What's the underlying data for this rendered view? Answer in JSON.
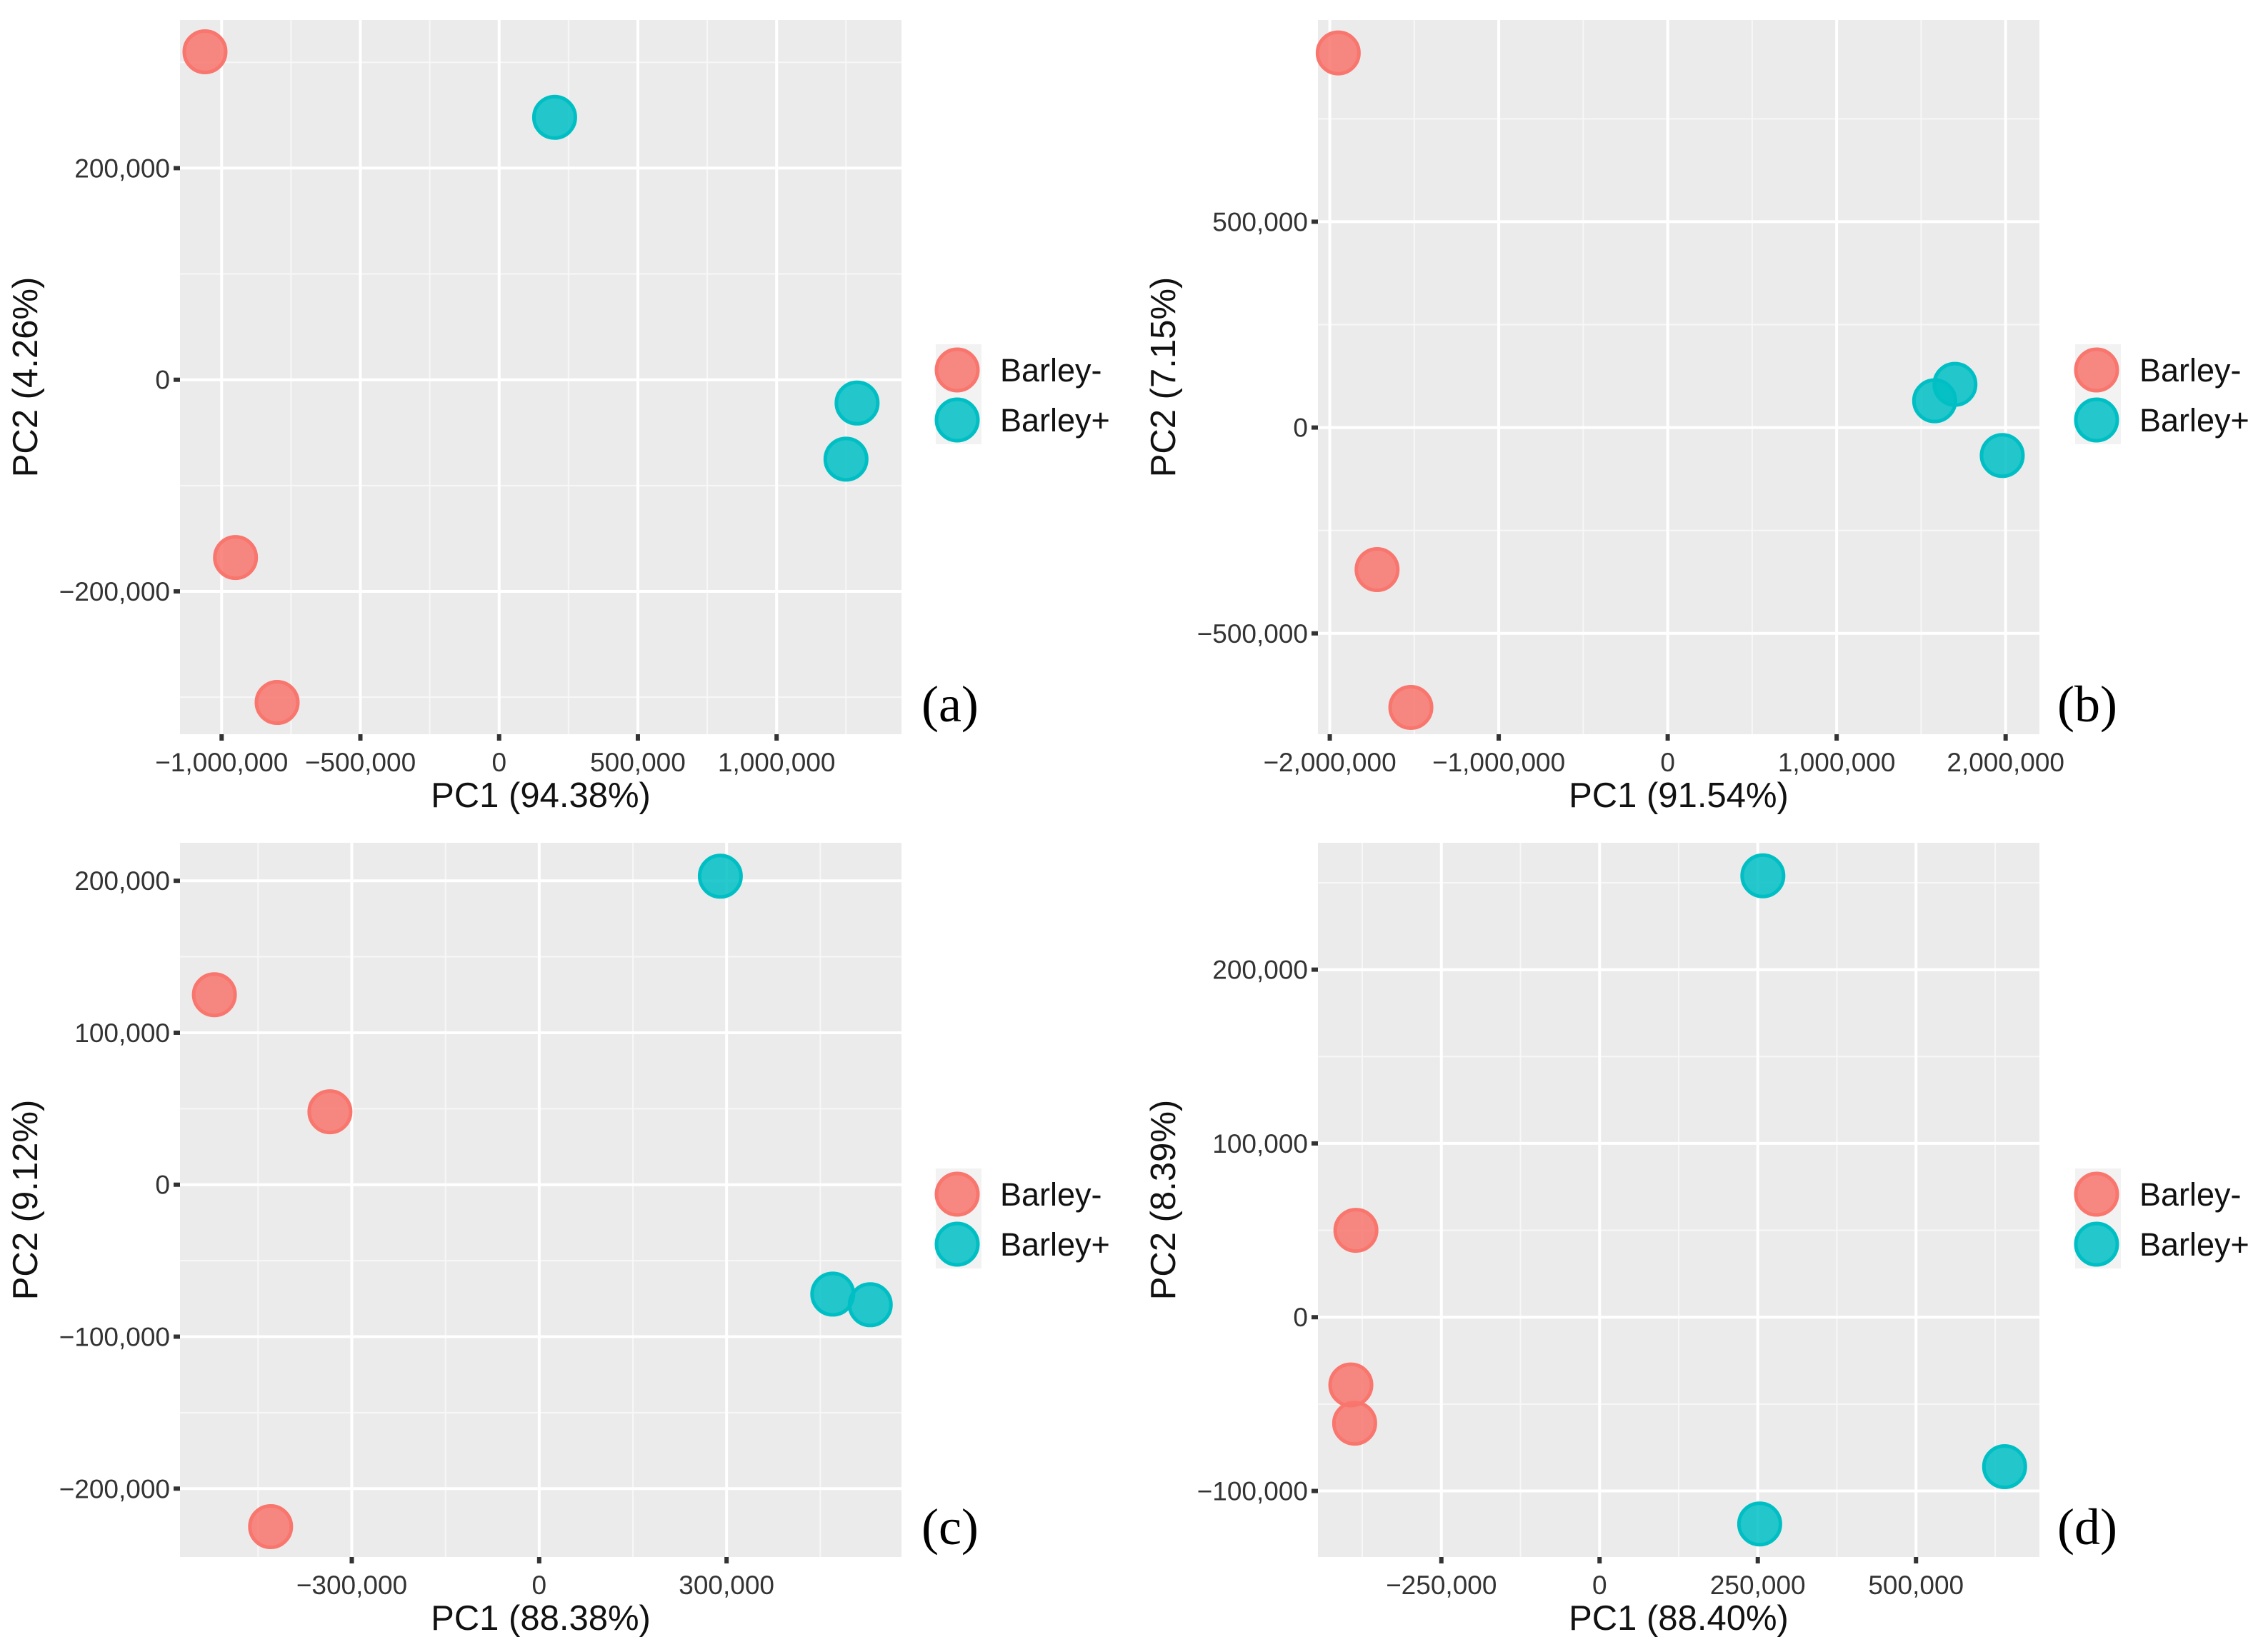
{
  "chart_data": [
    {
      "type": "scatter",
      "panel_label": "(a)",
      "xlabel": "PC1 (94.38%)",
      "ylabel": "PC2 (4.26%)",
      "xlim": [
        -1150000,
        1450000
      ],
      "ylim": [
        -335000,
        340000
      ],
      "xticks": [
        -1000000,
        -500000,
        0,
        500000,
        1000000
      ],
      "xtick_labels": [
        "−1,000,000",
        "−500,000",
        "0",
        "500,000",
        "1,000,000"
      ],
      "yticks": [
        -200000,
        0,
        200000
      ],
      "ytick_labels": [
        "−200,000",
        "0",
        "200,000"
      ],
      "grid": true,
      "legend": {
        "entries": [
          "Barley-",
          "Barley+"
        ],
        "placement": "right"
      },
      "series": [
        {
          "name": "Barley-",
          "color": "#F8766D",
          "points": [
            [
              -1060000,
              310000
            ],
            [
              -950000,
              -168000
            ],
            [
              -800000,
              -305000
            ]
          ]
        },
        {
          "name": "Barley+",
          "color": "#00BFC4",
          "points": [
            [
              200000,
              248000
            ],
            [
              1290000,
              -22000
            ],
            [
              1250000,
              -75000
            ]
          ]
        }
      ]
    },
    {
      "type": "scatter",
      "panel_label": "(b)",
      "xlabel": "PC1 (91.54%)",
      "ylabel": "PC2 (7.15%)",
      "xlim": [
        -2070000,
        2200000
      ],
      "ylim": [
        -745000,
        990000
      ],
      "xticks": [
        -2000000,
        -1000000,
        0,
        1000000,
        2000000
      ],
      "xtick_labels": [
        "−2,000,000",
        "−1,000,000",
        "0",
        "1,000,000",
        "2,000,000"
      ],
      "yticks": [
        -500000,
        0,
        500000
      ],
      "ytick_labels": [
        "−500,000",
        "0",
        "500,000"
      ],
      "grid": true,
      "legend": {
        "entries": [
          "Barley-",
          "Barley+"
        ],
        "placement": "right"
      },
      "series": [
        {
          "name": "Barley-",
          "color": "#F8766D",
          "points": [
            [
              -1950000,
              910000
            ],
            [
              -1720000,
              -345000
            ],
            [
              -1520000,
              -680000
            ]
          ]
        },
        {
          "name": "Barley+",
          "color": "#00BFC4",
          "points": [
            [
              1700000,
              105000
            ],
            [
              1580000,
              65000
            ],
            [
              1980000,
              -68000
            ]
          ]
        }
      ]
    },
    {
      "type": "scatter",
      "panel_label": "(c)",
      "xlabel": "PC1 (88.38%)",
      "ylabel": "PC2 (9.12%)",
      "xlim": [
        -575000,
        580000
      ],
      "ylim": [
        -245000,
        225000
      ],
      "xticks": [
        -300000,
        0,
        300000
      ],
      "xtick_labels": [
        "−300,000",
        "0",
        "300,000"
      ],
      "yticks": [
        -200000,
        -100000,
        0,
        100000,
        200000
      ],
      "ytick_labels": [
        "−200,000",
        "−100,000",
        "0",
        "100,000",
        "200,000"
      ],
      "grid": true,
      "legend": {
        "entries": [
          "Barley-",
          "Barley+"
        ],
        "placement": "right"
      },
      "series": [
        {
          "name": "Barley-",
          "color": "#F8766D",
          "points": [
            [
              -520000,
              125000
            ],
            [
              -335000,
              48000
            ],
            [
              -430000,
              -225000
            ]
          ]
        },
        {
          "name": "Barley+",
          "color": "#00BFC4",
          "points": [
            [
              290000,
              203000
            ],
            [
              470000,
              -72000
            ],
            [
              530000,
              -79000
            ]
          ]
        }
      ]
    },
    {
      "type": "scatter",
      "panel_label": "(d)",
      "xlabel": "PC1 (88.40%)",
      "ylabel": "PC2 (8.39%)",
      "xlim": [
        -445000,
        695000
      ],
      "ylim": [
        -138000,
        273000
      ],
      "xticks": [
        -250000,
        0,
        250000,
        500000
      ],
      "xtick_labels": [
        "−250,000",
        "0",
        "250,000",
        "500,000"
      ],
      "yticks": [
        -100000,
        0,
        100000,
        200000
      ],
      "ytick_labels": [
        "−100,000",
        "0",
        "100,000",
        "200,000"
      ],
      "grid": true,
      "legend": {
        "entries": [
          "Barley-",
          "Barley+"
        ],
        "placement": "right"
      },
      "series": [
        {
          "name": "Barley-",
          "color": "#F8766D",
          "points": [
            [
              -385000,
              50000
            ],
            [
              -393000,
              -39000
            ],
            [
              -387000,
              -61000
            ]
          ]
        },
        {
          "name": "Barley+",
          "color": "#00BFC4",
          "points": [
            [
              258000,
              254000
            ],
            [
              253000,
              -119000
            ],
            [
              640000,
              -86000
            ]
          ]
        }
      ]
    }
  ]
}
